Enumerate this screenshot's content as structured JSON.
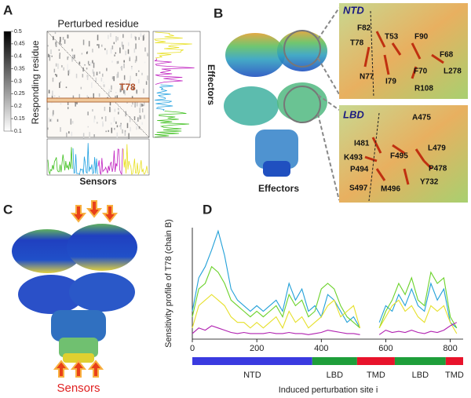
{
  "panels": {
    "A": {
      "label": "A",
      "title": "Perturbed residue",
      "y_label": "Responding residue",
      "side_label": "Effectors",
      "bottom_label": "Sensors",
      "highlight": "T78",
      "colorbar_ticks": [
        0.5,
        0.45,
        0.4,
        0.35,
        0.3,
        0.25,
        0.2,
        0.15,
        0.1
      ]
    },
    "B": {
      "label": "B",
      "structure_label": "Effectors",
      "insets": [
        {
          "title": "NTD",
          "residues": [
            "F82",
            "T53",
            "F90",
            "T78",
            "F68",
            "N77",
            "I79",
            "F70",
            "L278",
            "R108"
          ]
        },
        {
          "title": "LBD",
          "residues": [
            "A475",
            "I481",
            "L479",
            "K493",
            "F495",
            "P494",
            "P478",
            "S497",
            "M496",
            "Y732"
          ]
        }
      ]
    },
    "C": {
      "label": "C",
      "structure_label": "Sensors"
    },
    "D": {
      "label": "D"
    }
  },
  "chart_data": {
    "type": "line",
    "y_label": "Sensitivity profile of T78 (chain B)",
    "x_label": "Induced perturbation site i",
    "xlim": [
      0,
      840
    ],
    "ylim": [
      0,
      1
    ],
    "xticks": [
      0,
      200,
      400,
      600,
      800
    ],
    "x": [
      0,
      20,
      40,
      60,
      80,
      100,
      120,
      140,
      160,
      180,
      200,
      220,
      240,
      260,
      280,
      300,
      320,
      340,
      360,
      380,
      400,
      420,
      440,
      460,
      480,
      500,
      520,
      540,
      560,
      580,
      600,
      620,
      640,
      660,
      680,
      700,
      720,
      740,
      760,
      780,
      800,
      820
    ],
    "series": [
      {
        "color": "#22a0d8",
        "values": [
          0.25,
          0.55,
          0.65,
          0.8,
          0.97,
          0.75,
          0.45,
          0.35,
          0.3,
          0.25,
          0.3,
          0.25,
          0.3,
          0.35,
          0.25,
          0.5,
          0.35,
          0.45,
          0.25,
          0.3,
          0.2,
          0.4,
          0.35,
          0.25,
          0.15,
          0.2,
          0.1,
          null,
          null,
          0.15,
          0.3,
          0.25,
          0.4,
          0.3,
          0.45,
          0.3,
          0.25,
          0.5,
          0.35,
          0.45,
          0.15,
          0.1
        ]
      },
      {
        "color": "#6bd22a",
        "values": [
          0.2,
          0.45,
          0.5,
          0.65,
          0.6,
          0.5,
          0.35,
          0.3,
          0.25,
          0.2,
          0.25,
          0.2,
          0.25,
          0.3,
          0.2,
          0.4,
          0.3,
          0.35,
          0.2,
          0.25,
          0.45,
          0.5,
          0.45,
          0.3,
          0.2,
          0.15,
          0.1,
          null,
          null,
          0.1,
          0.25,
          0.35,
          0.5,
          0.4,
          0.55,
          0.35,
          0.3,
          0.6,
          0.5,
          0.55,
          0.2,
          0.1
        ]
      },
      {
        "color": "#e6e02a",
        "values": [
          0.1,
          0.3,
          0.35,
          0.4,
          0.35,
          0.3,
          0.2,
          0.15,
          0.15,
          0.1,
          0.15,
          0.1,
          0.15,
          0.2,
          0.1,
          0.25,
          0.15,
          0.2,
          0.1,
          0.15,
          0.2,
          0.3,
          0.35,
          0.2,
          0.25,
          0.3,
          0.1,
          null,
          null,
          0.1,
          0.2,
          0.3,
          0.35,
          0.25,
          0.3,
          0.2,
          0.15,
          0.3,
          0.25,
          0.3,
          0.15,
          0.05
        ]
      },
      {
        "color": "#b020b0",
        "values": [
          0.05,
          0.1,
          0.08,
          0.12,
          0.1,
          0.08,
          0.06,
          0.05,
          0.06,
          0.05,
          0.05,
          0.05,
          0.06,
          0.05,
          0.05,
          0.06,
          0.05,
          0.05,
          0.04,
          0.05,
          0.06,
          0.08,
          0.07,
          0.06,
          0.05,
          0.05,
          0.04,
          null,
          null,
          0.04,
          0.08,
          0.06,
          0.07,
          0.06,
          0.08,
          0.06,
          0.05,
          0.07,
          0.06,
          0.08,
          0.12,
          0.15
        ]
      }
    ],
    "domains": [
      {
        "name": "NTD",
        "start": 0,
        "end": 372,
        "color": "#3a3ae0"
      },
      {
        "name": "LBD",
        "start": 372,
        "end": 511,
        "color": "#1e9e3a"
      },
      {
        "name": "TMD",
        "start": 511,
        "end": 628,
        "color": "#e8132b"
      },
      {
        "name": "LBD",
        "start": 628,
        "end": 786,
        "color": "#1e9e3a"
      },
      {
        "name": "TMD",
        "start": 786,
        "end": 840,
        "color": "#e8132b"
      }
    ]
  }
}
